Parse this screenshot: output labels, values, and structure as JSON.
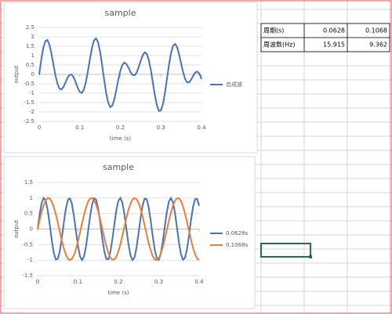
{
  "chart_data": [
    {
      "type": "line",
      "title": "sample",
      "x_label": "time (s)",
      "y_label": "output",
      "x": [
        0,
        0.005,
        0.01,
        0.015,
        0.02,
        0.025,
        0.03,
        0.035,
        0.04,
        0.045,
        0.05,
        0.055,
        0.06,
        0.065,
        0.07,
        0.075,
        0.08,
        0.085,
        0.09,
        0.095,
        0.1,
        0.105,
        0.11,
        0.115,
        0.12,
        0.125,
        0.13,
        0.135,
        0.14,
        0.145,
        0.15,
        0.155,
        0.16,
        0.165,
        0.17,
        0.175,
        0.18,
        0.185,
        0.19,
        0.195,
        0.2,
        0.205,
        0.21,
        0.215,
        0.22,
        0.225,
        0.23,
        0.235,
        0.24,
        0.245,
        0.25,
        0.255,
        0.26,
        0.265,
        0.27,
        0.275,
        0.28,
        0.285,
        0.29,
        0.295,
        0.3,
        0.305,
        0.31,
        0.315,
        0.32,
        0.325,
        0.33,
        0.335,
        0.34,
        0.345,
        0.35,
        0.355,
        0.36,
        0.365,
        0.37,
        0.375,
        0.38,
        0.385,
        0.39,
        0.395,
        0.4
      ],
      "series": [
        {
          "name": "合成波",
          "color": "#4472c4",
          "values": [
            0,
            0.77,
            1.4,
            1.77,
            1.83,
            1.59,
            1.12,
            0.53,
            -0.05,
            -0.5,
            -0.76,
            -0.8,
            -0.66,
            -0.42,
            -0.17,
            -0.02,
            -0.01,
            -0.16,
            -0.42,
            -0.72,
            -0.93,
            -0.99,
            -0.81,
            -0.41,
            0.16,
            0.81,
            1.4,
            1.8,
            1.92,
            1.72,
            1.22,
            0.51,
            -0.27,
            -0.99,
            -1.5,
            -1.74,
            -1.67,
            -1.34,
            -0.83,
            -0.28,
            0.19,
            0.51,
            0.63,
            0.55,
            0.36,
            0.13,
            -0.03,
            -0.05,
            0.09,
            0.37,
            0.71,
            1.01,
            1.17,
            1.1,
            0.78,
            0.25,
            -0.42,
            -1.1,
            -1.64,
            -1.94,
            -1.92,
            -1.58,
            -0.98,
            -0.23,
            0.52,
            1.15,
            1.53,
            1.62,
            1.44,
            1.05,
            0.56,
            0.09,
            -0.26,
            -0.43,
            -0.42,
            -0.26,
            -0.06,
            0.11,
            0.15,
            0.03,
            -0.25
          ]
        }
      ],
      "xlim": [
        0,
        0.4
      ],
      "xticks": [
        0,
        0.1,
        0.2,
        0.3,
        0.4
      ],
      "ylim": [
        -2.5,
        2.5
      ],
      "yticks": [
        -2.5,
        -2,
        -1.5,
        -1,
        -0.5,
        0,
        0.5,
        1,
        1.5,
        2,
        2.5
      ],
      "grid": true,
      "legend": "right"
    },
    {
      "type": "line",
      "title": "sample",
      "x_label": "time (s)",
      "y_label": "output",
      "x": [
        0,
        0.005,
        0.01,
        0.015,
        0.02,
        0.025,
        0.03,
        0.035,
        0.04,
        0.045,
        0.05,
        0.055,
        0.06,
        0.065,
        0.07,
        0.075,
        0.08,
        0.085,
        0.09,
        0.095,
        0.1,
        0.105,
        0.11,
        0.115,
        0.12,
        0.125,
        0.13,
        0.135,
        0.14,
        0.145,
        0.15,
        0.155,
        0.16,
        0.165,
        0.17,
        0.175,
        0.18,
        0.185,
        0.19,
        0.195,
        0.2,
        0.205,
        0.21,
        0.215,
        0.22,
        0.225,
        0.23,
        0.235,
        0.24,
        0.245,
        0.25,
        0.255,
        0.26,
        0.265,
        0.27,
        0.275,
        0.28,
        0.285,
        0.29,
        0.295,
        0.3,
        0.305,
        0.31,
        0.315,
        0.32,
        0.325,
        0.33,
        0.335,
        0.34,
        0.345,
        0.35,
        0.355,
        0.36,
        0.365,
        0.37,
        0.375,
        0.38,
        0.385,
        0.39,
        0.395,
        0.4
      ],
      "series": [
        {
          "name": "0.0628s",
          "color": "#4472c4",
          "values": [
            0,
            0.48,
            0.84,
            1,
            0.91,
            0.6,
            0.14,
            -0.35,
            -0.76,
            -0.98,
            -0.96,
            -0.71,
            -0.28,
            0.22,
            0.66,
            0.94,
            0.99,
            0.8,
            0.41,
            -0.08,
            -0.54,
            -0.88,
            -1,
            -0.88,
            -0.54,
            -0.07,
            0.42,
            0.8,
            0.99,
            0.94,
            0.65,
            0.21,
            -0.29,
            -0.71,
            -0.96,
            -0.98,
            -0.75,
            -0.34,
            0.15,
            0.61,
            0.91,
            1,
            0.84,
            0.47,
            -0.01,
            -0.49,
            -0.85,
            -1,
            -0.91,
            -0.59,
            -0.13,
            0.36,
            0.76,
            0.98,
            0.96,
            0.7,
            0.27,
            -0.22,
            -0.66,
            -0.94,
            -0.99,
            -0.79,
            -0.4,
            0.08,
            0.55,
            0.88,
            1,
            0.87,
            0.53,
            0.06,
            -0.43,
            -0.81,
            -0.99,
            -0.93,
            -0.64,
            -0.2,
            0.3,
            0.72,
            0.96,
            0.97,
            0.75
          ]
        },
        {
          "name": "0.1068s",
          "color": "#ed7d31",
          "values": [
            0,
            0.29,
            0.56,
            0.77,
            0.92,
            1,
            0.98,
            0.88,
            0.71,
            0.48,
            0.2,
            -0.09,
            -0.38,
            -0.63,
            -0.83,
            -0.96,
            -1,
            -0.96,
            -0.84,
            -0.64,
            -0.39,
            -0.11,
            0.19,
            0.46,
            0.7,
            0.88,
            0.98,
            1,
            0.93,
            0.78,
            0.57,
            0.3,
            0.01,
            -0.28,
            -0.54,
            -0.76,
            -0.92,
            -0.99,
            -0.98,
            -0.89,
            -0.72,
            -0.49,
            -0.21,
            0.08,
            0.37,
            0.62,
            0.82,
            0.95,
            1,
            0.96,
            0.84,
            0.65,
            0.4,
            0.12,
            -0.17,
            -0.45,
            -0.69,
            -0.87,
            -0.98,
            -1,
            -0.93,
            -0.79,
            -0.58,
            -0.32,
            -0.03,
            0.26,
            0.53,
            0.75,
            0.91,
            0.99,
            0.99,
            0.9,
            0.73,
            0.5,
            0.23,
            -0.07,
            -0.35,
            -0.61,
            -0.81,
            -0.95,
            -1
          ]
        }
      ],
      "xlim": [
        0,
        0.4
      ],
      "xticks": [
        0,
        0.1,
        0.2,
        0.3,
        0.4
      ],
      "ylim": [
        -1.5,
        1.5
      ],
      "yticks": [
        -1.5,
        -1,
        -0.5,
        0,
        0.5,
        1,
        1.5
      ],
      "grid": true,
      "legend": "right"
    }
  ],
  "table": {
    "rows": [
      [
        "周期(s)",
        0.0628,
        0.1068
      ],
      [
        "周波数(Hz)",
        15.915,
        9.362
      ]
    ]
  }
}
